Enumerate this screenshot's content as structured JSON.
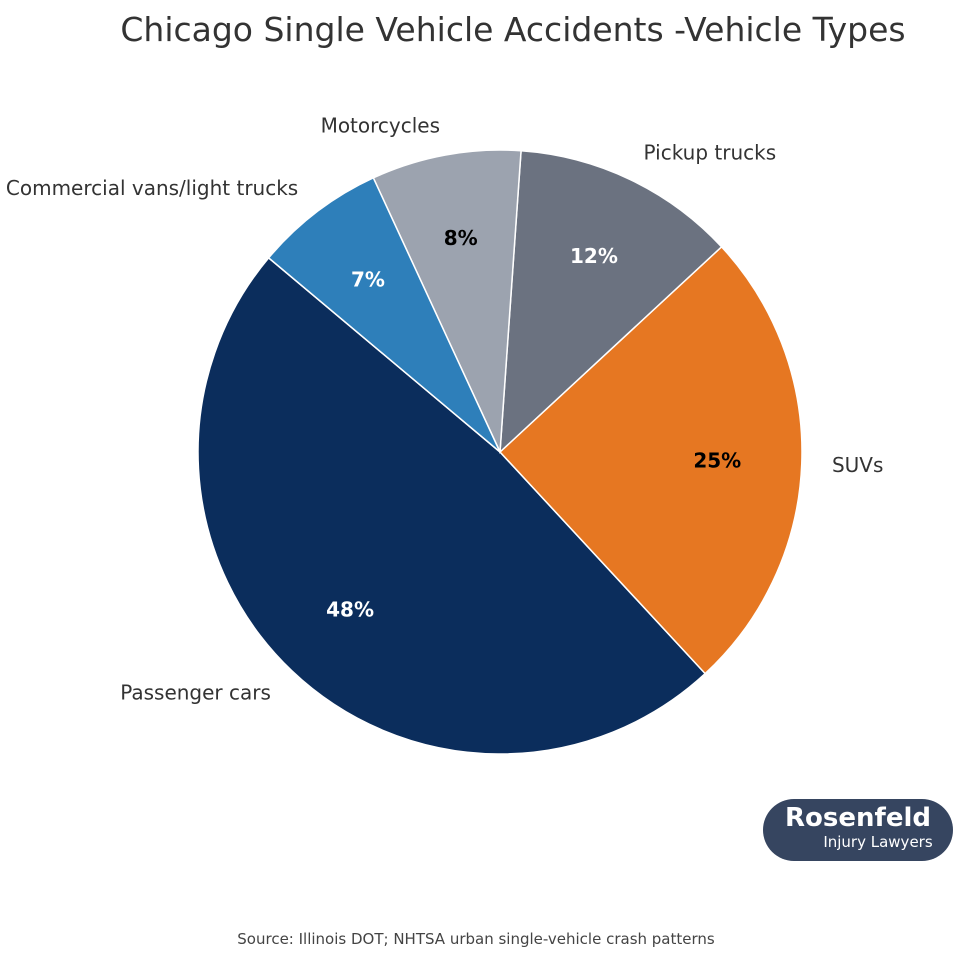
{
  "chart_data": {
    "type": "pie",
    "title": "Chicago Single Vehicle Accidents -Vehicle Types",
    "categories": [
      "Passenger cars",
      "SUVs",
      "Pickup trucks",
      "Motorcycles",
      "Commercial vans/light trucks"
    ],
    "values": [
      48,
      25,
      12,
      8,
      7
    ],
    "pct_labels": [
      "48%",
      "25%",
      "12%",
      "8%",
      "7%"
    ],
    "colors": [
      "#0b2d5c",
      "#e67722",
      "#6b7280",
      "#9ca3af",
      "#2e7fba"
    ],
    "pct_label_colors": [
      "#ffffff",
      "#000000",
      "#ffffff",
      "#000000",
      "#ffffff"
    ],
    "start_angle_deg": 140,
    "direction": "counterclockwise"
  },
  "source": "Source: Illinois DOT; NHTSA urban single-vehicle crash patterns",
  "logo": {
    "line1": "Rosenfeld",
    "line2": "Injury Lawyers"
  }
}
